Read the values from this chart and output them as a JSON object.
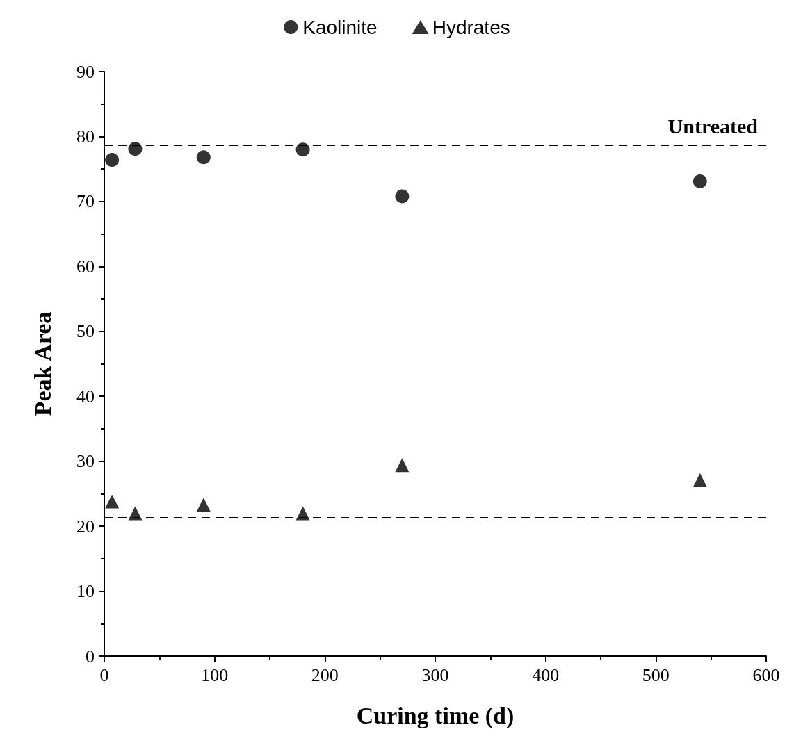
{
  "chart_data": {
    "type": "scatter",
    "xlabel": "Curing time (d)",
    "ylabel": "Peak Area",
    "x": [
      7,
      28,
      90,
      180,
      270,
      540
    ],
    "series": [
      {
        "name": "Kaolinite",
        "color": "#000000",
        "marker": "circle",
        "values": [
          76.4,
          78.1,
          76.8,
          78.0,
          70.8,
          73.1
        ]
      },
      {
        "name": "Hydrates",
        "color": "#000000",
        "marker": "triangle",
        "values": [
          23.8,
          22.0,
          23.3,
          22.0,
          29.4,
          27.1
        ]
      }
    ],
    "xlim": [
      0,
      600
    ],
    "xticks": [
      0,
      100,
      200,
      300,
      400,
      500,
      600
    ],
    "ylim": [
      0,
      90
    ],
    "yticks": [
      0,
      10,
      20,
      30,
      40,
      50,
      60,
      70,
      80,
      90
    ],
    "ref_lines": [
      {
        "axis": "y",
        "value": 78.7,
        "label": "Untreated",
        "color": "#000000",
        "line_style": "dashed"
      },
      {
        "axis": "y",
        "value": 21.3,
        "label": null,
        "color": "#000000",
        "line_style": "dashed"
      }
    ],
    "grid": false,
    "legend": "top"
  }
}
